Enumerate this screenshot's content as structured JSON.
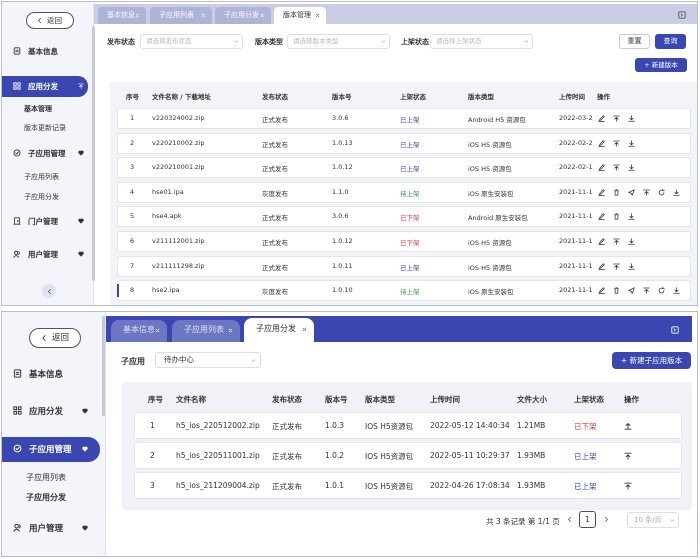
{
  "top": {
    "back": "返回",
    "menu": [
      "基本信息",
      "应用分发",
      "基本管理",
      "版本更新记录",
      "子应用管理",
      "子应用列表",
      "子应用分发",
      "门户管理",
      "用户管理"
    ],
    "tabs": [
      "基本信息",
      "子应用列表",
      "子应用分发",
      "版本管理"
    ],
    "filters": [
      {
        "label": "发布状态",
        "placeholder": "请选择发布状态"
      },
      {
        "label": "版本类型",
        "placeholder": "请选择版本类型"
      },
      {
        "label": "上架状态",
        "placeholder": "请选择上架状态"
      }
    ],
    "buttons": {
      "reset": "重置",
      "query": "查询",
      "new": "+ 新建版本"
    },
    "table": {
      "headers": [
        "序号",
        "文件名称 / 下载地址",
        "发布状态",
        "版本号",
        "上架状态",
        "版本类型",
        "上传时间",
        "操作"
      ],
      "rows": [
        [
          "1",
          "v220324002.zip",
          "正式发布",
          "3.0.6",
          {
            "text": "已上架",
            "color": "#3b48c4"
          },
          "Android H5 资源包",
          "2022-03-2"
        ],
        [
          "2",
          "v220210002.zip",
          "正式发布",
          "1.0.13",
          {
            "text": "已上架",
            "color": "#3b48c4"
          },
          "iOS H5 资源包",
          "2022-02-2"
        ],
        [
          "3",
          "v220210001.zip",
          "正式发布",
          "1.0.12",
          {
            "text": "已上架",
            "color": "#3b48c4"
          },
          "iOS H5 资源包",
          "2022-02-1"
        ],
        [
          "4",
          "hse01.ipa",
          "灰度发布",
          "1.1.0",
          {
            "text": "待上架",
            "color": "#2e9e5b"
          },
          "iOS 原生安装包",
          "2021-11-1"
        ],
        [
          "5",
          "hse4.apk",
          "正式发布",
          "3.0.6",
          {
            "text": "已下架",
            "color": "#e03c3c"
          },
          "Android 原生安装包",
          "2021-11-1"
        ],
        [
          "6",
          "v211112001.zip",
          "正式发布",
          "1.0.12",
          {
            "text": "已下架",
            "color": "#e03c3c"
          },
          "iOS H5 资源包",
          "2021-11-1"
        ],
        [
          "7",
          "v211111298.zip",
          "正式发布",
          "1.0.11",
          {
            "text": "已上架",
            "color": "#3b48c4"
          },
          "iOS H5 资源包",
          "2021-11-1"
        ],
        [
          "8",
          "hse2.ipa",
          "灰度发布",
          "1.0.10",
          {
            "text": "待上架",
            "color": "#2e9e5b"
          },
          "iOS 原生安装包",
          "2021-11-1"
        ]
      ]
    }
  },
  "bottom": {
    "back": "返回",
    "menu": [
      "基本信息",
      "应用分发",
      "子应用管理",
      "子应用列表",
      "子应用分发",
      "用户管理"
    ],
    "tabs": [
      "基本信息",
      "子应用列表",
      "子应用分发"
    ],
    "filter": {
      "label": "子应用",
      "value": "待办中心"
    },
    "button_new": "+ 新建子应用版本",
    "table": {
      "headers": [
        "序号",
        "文件名称",
        "发布状态",
        "版本号",
        "版本类型",
        "上传时间",
        "文件大小",
        "上架状态",
        "操作"
      ],
      "rows": [
        [
          "1",
          "h5_ios_220512002.zip",
          "正式发布",
          "1.0.3",
          "IOS H5资源包",
          "2022-05-12 14:40:34",
          "1.21MB",
          {
            "text": "已下架",
            "color": "#e03c3c"
          }
        ],
        [
          "2",
          "h5_ios_220511001.zip",
          "正式发布",
          "1.0.2",
          "IOS H5资源包",
          "2022-05-11 10:29:37",
          "1.93MB",
          {
            "text": "已上架",
            "color": "#3b48c4"
          }
        ],
        [
          "3",
          "h5_ios_211209004.zip",
          "正式发布",
          "1.0.1",
          "IOS H5资源包",
          "2022-04-26 17:08:34",
          "1.93MB",
          {
            "text": "已上架",
            "color": "#3b48c4"
          }
        ]
      ]
    },
    "pagination": {
      "summary": "共 3 条记录 第 1/1 页",
      "page": "1",
      "size": "10 条/页"
    }
  }
}
